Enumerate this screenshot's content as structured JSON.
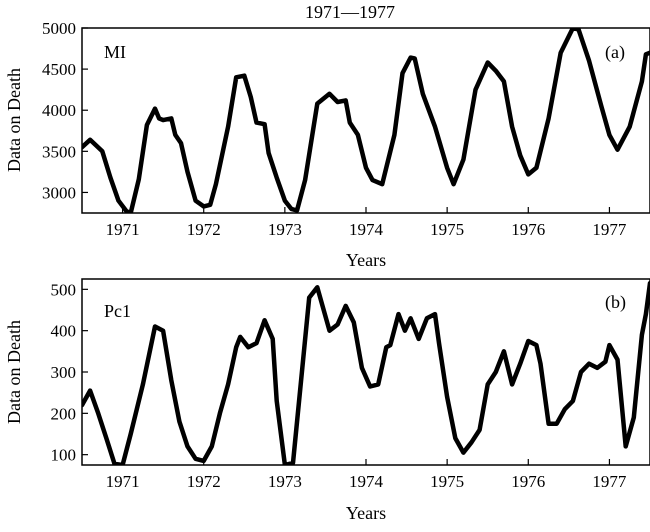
{
  "figure_title": "1971—1977",
  "chart_data": [
    {
      "type": "line",
      "panel_tag": "(a)",
      "series": [
        {
          "name": "MI",
          "x": [
            1970.5,
            1970.6,
            1970.75,
            1970.85,
            1970.95,
            1971.05,
            1971.1,
            1971.2,
            1971.3,
            1971.4,
            1971.45,
            1971.5,
            1971.6,
            1971.65,
            1971.72,
            1971.8,
            1971.9,
            1972.0,
            1972.08,
            1972.15,
            1972.3,
            1972.4,
            1972.5,
            1972.58,
            1972.65,
            1972.75,
            1972.8,
            1972.9,
            1973.0,
            1973.08,
            1973.15,
            1973.25,
            1973.4,
            1973.55,
            1973.65,
            1973.75,
            1973.8,
            1973.9,
            1974.0,
            1974.08,
            1974.2,
            1974.35,
            1974.45,
            1974.55,
            1974.6,
            1974.7,
            1974.85,
            1975.0,
            1975.08,
            1975.2,
            1975.35,
            1975.5,
            1975.6,
            1975.7,
            1975.8,
            1975.9,
            1976.0,
            1976.1,
            1976.25,
            1976.4,
            1976.55,
            1976.62,
            1976.75,
            1976.9,
            1977.0,
            1977.1,
            1977.25,
            1977.4,
            1977.45,
            1977.5
          ],
          "values": [
            3550,
            3640,
            3500,
            3180,
            2900,
            2770,
            2750,
            3160,
            3820,
            4020,
            3900,
            3880,
            3900,
            3700,
            3600,
            3250,
            2900,
            2830,
            2850,
            3100,
            3800,
            4400,
            4420,
            4160,
            3850,
            3830,
            3480,
            3180,
            2900,
            2800,
            2780,
            3150,
            4080,
            4200,
            4100,
            4120,
            3850,
            3700,
            3300,
            3150,
            3100,
            3700,
            4450,
            4640,
            4630,
            4200,
            3800,
            3300,
            3100,
            3400,
            4250,
            4580,
            4480,
            4350,
            3800,
            3450,
            3220,
            3300,
            3900,
            4700,
            5000,
            4980,
            4600,
            4050,
            3700,
            3520,
            3800,
            4350,
            4680,
            4700
          ]
        }
      ],
      "xlabel": "Years",
      "ylabel": "Data on Death",
      "xlim": [
        1970.5,
        1977.5
      ],
      "ylim": [
        2750,
        5000
      ],
      "xticks": [
        1971,
        1972,
        1973,
        1974,
        1975,
        1976,
        1977
      ],
      "yticks": [
        3000,
        3500,
        4000,
        4500,
        5000
      ],
      "grid": false
    },
    {
      "type": "line",
      "panel_tag": "(b)",
      "series": [
        {
          "name": "Pc1",
          "x": [
            1970.5,
            1970.6,
            1970.7,
            1970.8,
            1970.9,
            1971.0,
            1971.1,
            1971.25,
            1971.4,
            1971.5,
            1971.6,
            1971.7,
            1971.8,
            1971.9,
            1972.0,
            1972.1,
            1972.2,
            1972.3,
            1972.4,
            1972.45,
            1972.55,
            1972.65,
            1972.75,
            1972.85,
            1972.9,
            1973.0,
            1973.1,
            1973.2,
            1973.3,
            1973.4,
            1973.55,
            1973.65,
            1973.75,
            1973.85,
            1973.95,
            1974.05,
            1974.15,
            1974.25,
            1974.3,
            1974.4,
            1974.48,
            1974.55,
            1974.65,
            1974.75,
            1974.85,
            1974.9,
            1975.0,
            1975.1,
            1975.2,
            1975.3,
            1975.4,
            1975.5,
            1975.6,
            1975.7,
            1975.8,
            1975.9,
            1976.0,
            1976.1,
            1976.15,
            1976.25,
            1976.35,
            1976.45,
            1976.55,
            1976.65,
            1976.75,
            1976.85,
            1976.95,
            1977.0,
            1977.1,
            1977.2,
            1977.3,
            1977.4,
            1977.45,
            1977.5
          ],
          "values": [
            220,
            255,
            200,
            140,
            78,
            75,
            150,
            270,
            410,
            400,
            280,
            180,
            120,
            90,
            85,
            120,
            200,
            270,
            360,
            385,
            360,
            370,
            425,
            380,
            230,
            75,
            80,
            280,
            480,
            505,
            400,
            415,
            460,
            420,
            310,
            265,
            270,
            360,
            365,
            440,
            400,
            430,
            380,
            430,
            440,
            370,
            240,
            140,
            105,
            130,
            160,
            270,
            300,
            350,
            270,
            320,
            375,
            365,
            320,
            175,
            175,
            210,
            230,
            300,
            320,
            310,
            325,
            365,
            330,
            120,
            190,
            390,
            440,
            515
          ]
        }
      ],
      "xlabel": "Years",
      "ylabel": "Data on Death",
      "xlim": [
        1970.5,
        1977.5
      ],
      "ylim": [
        75,
        525
      ],
      "xticks": [
        1971,
        1972,
        1973,
        1974,
        1975,
        1976,
        1977
      ],
      "yticks": [
        100,
        200,
        300,
        400,
        500
      ],
      "grid": false
    }
  ]
}
